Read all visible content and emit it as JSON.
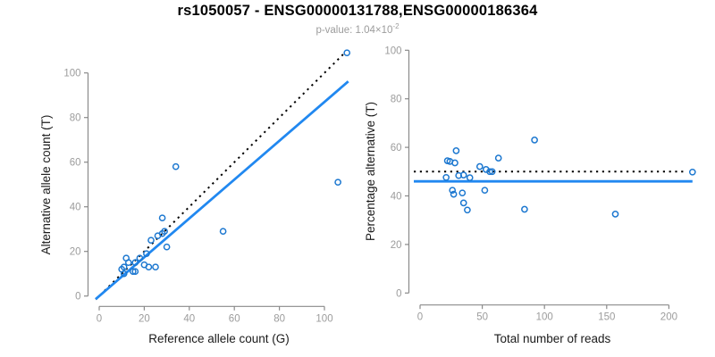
{
  "header": {
    "title": "rs1050057 - ENSG00000131788,ENSG00000186364",
    "subtitle_prefix": "p-value: 1.04×10",
    "subtitle_exponent": "-2"
  },
  "colors": {
    "title": "#000000",
    "subtitle": "#9c9c9c",
    "point": "#1d78d0",
    "regression": "#2188f0",
    "identity": "#000000",
    "axis": "#8a8a8a",
    "tick_label": "#9c9c9c",
    "axis_label": "#1a1a1a",
    "background": "#ffffff"
  },
  "chart_data": [
    {
      "id": "allele-count-scatter",
      "type": "scatter",
      "title": "",
      "xlabel": "Reference allele count (G)",
      "ylabel": "Alternative allele count (T)",
      "xticks": [
        0,
        20,
        40,
        60,
        80,
        100
      ],
      "yticks": [
        0,
        20,
        40,
        60,
        80,
        100
      ],
      "xlim": [
        -4.5,
        114.5
      ],
      "ylim": [
        -4.5,
        114.5
      ],
      "grid": false,
      "legend": null,
      "points": [
        [
          34,
          58
        ],
        [
          110,
          109
        ],
        [
          12,
          17
        ],
        [
          28,
          35
        ],
        [
          10,
          12
        ],
        [
          11,
          13
        ],
        [
          13,
          15
        ],
        [
          23,
          25
        ],
        [
          26,
          27
        ],
        [
          28,
          28
        ],
        [
          29,
          29
        ],
        [
          106,
          51
        ],
        [
          18,
          17
        ],
        [
          16,
          15
        ],
        [
          11,
          10
        ],
        [
          21,
          19
        ],
        [
          15,
          11
        ],
        [
          30,
          22
        ],
        [
          20,
          14
        ],
        [
          16,
          11
        ],
        [
          22,
          13
        ],
        [
          55,
          29
        ],
        [
          25,
          13
        ]
      ],
      "lines": [
        {
          "name": "identity-line",
          "style": "dotted",
          "color": "identity",
          "width": 2,
          "from": [
            -1.5,
            -1.5
          ],
          "to": [
            109.6,
            109.6
          ]
        },
        {
          "name": "regression-line",
          "style": "solid",
          "color": "regression",
          "width": 2.8,
          "from": [
            -1.6,
            -1.4
          ],
          "to": [
            110.6,
            96.2
          ]
        }
      ]
    },
    {
      "id": "percentage-scatter",
      "type": "scatter",
      "title": "",
      "xlabel": "Total number of reads",
      "ylabel": "Percentage alternative (T)",
      "xticks": [
        0,
        50,
        100,
        150,
        200
      ],
      "yticks": [
        0,
        20,
        40,
        60,
        80,
        100
      ],
      "xlim": [
        -9,
        228
      ],
      "ylim": [
        -4,
        104
      ],
      "grid": false,
      "legend": null,
      "points": [
        [
          92,
          63
        ],
        [
          219,
          49.8
        ],
        [
          29,
          58.6
        ],
        [
          63,
          55.6
        ],
        [
          22,
          54.5
        ],
        [
          24,
          54.2
        ],
        [
          28,
          53.6
        ],
        [
          48,
          52.1
        ],
        [
          53,
          50.9
        ],
        [
          56,
          50
        ],
        [
          58,
          50
        ],
        [
          157,
          32.5
        ],
        [
          35,
          48.6
        ],
        [
          31,
          48.4
        ],
        [
          21,
          47.6
        ],
        [
          40,
          47.5
        ],
        [
          26,
          42.3
        ],
        [
          52,
          42.3
        ],
        [
          34,
          41.2
        ],
        [
          27,
          40.7
        ],
        [
          35,
          37.1
        ],
        [
          84,
          34.5
        ],
        [
          38,
          34.2
        ]
      ],
      "lines": [
        {
          "name": "expected-50pct-line",
          "style": "dotted",
          "color": "identity",
          "width": 2,
          "from": [
            -5,
            50
          ],
          "to": [
            213,
            50
          ]
        },
        {
          "name": "mean-percentage-line",
          "style": "solid",
          "color": "regression",
          "width": 2.8,
          "from": [
            -5,
            46
          ],
          "to": [
            219,
            46
          ]
        }
      ]
    }
  ]
}
